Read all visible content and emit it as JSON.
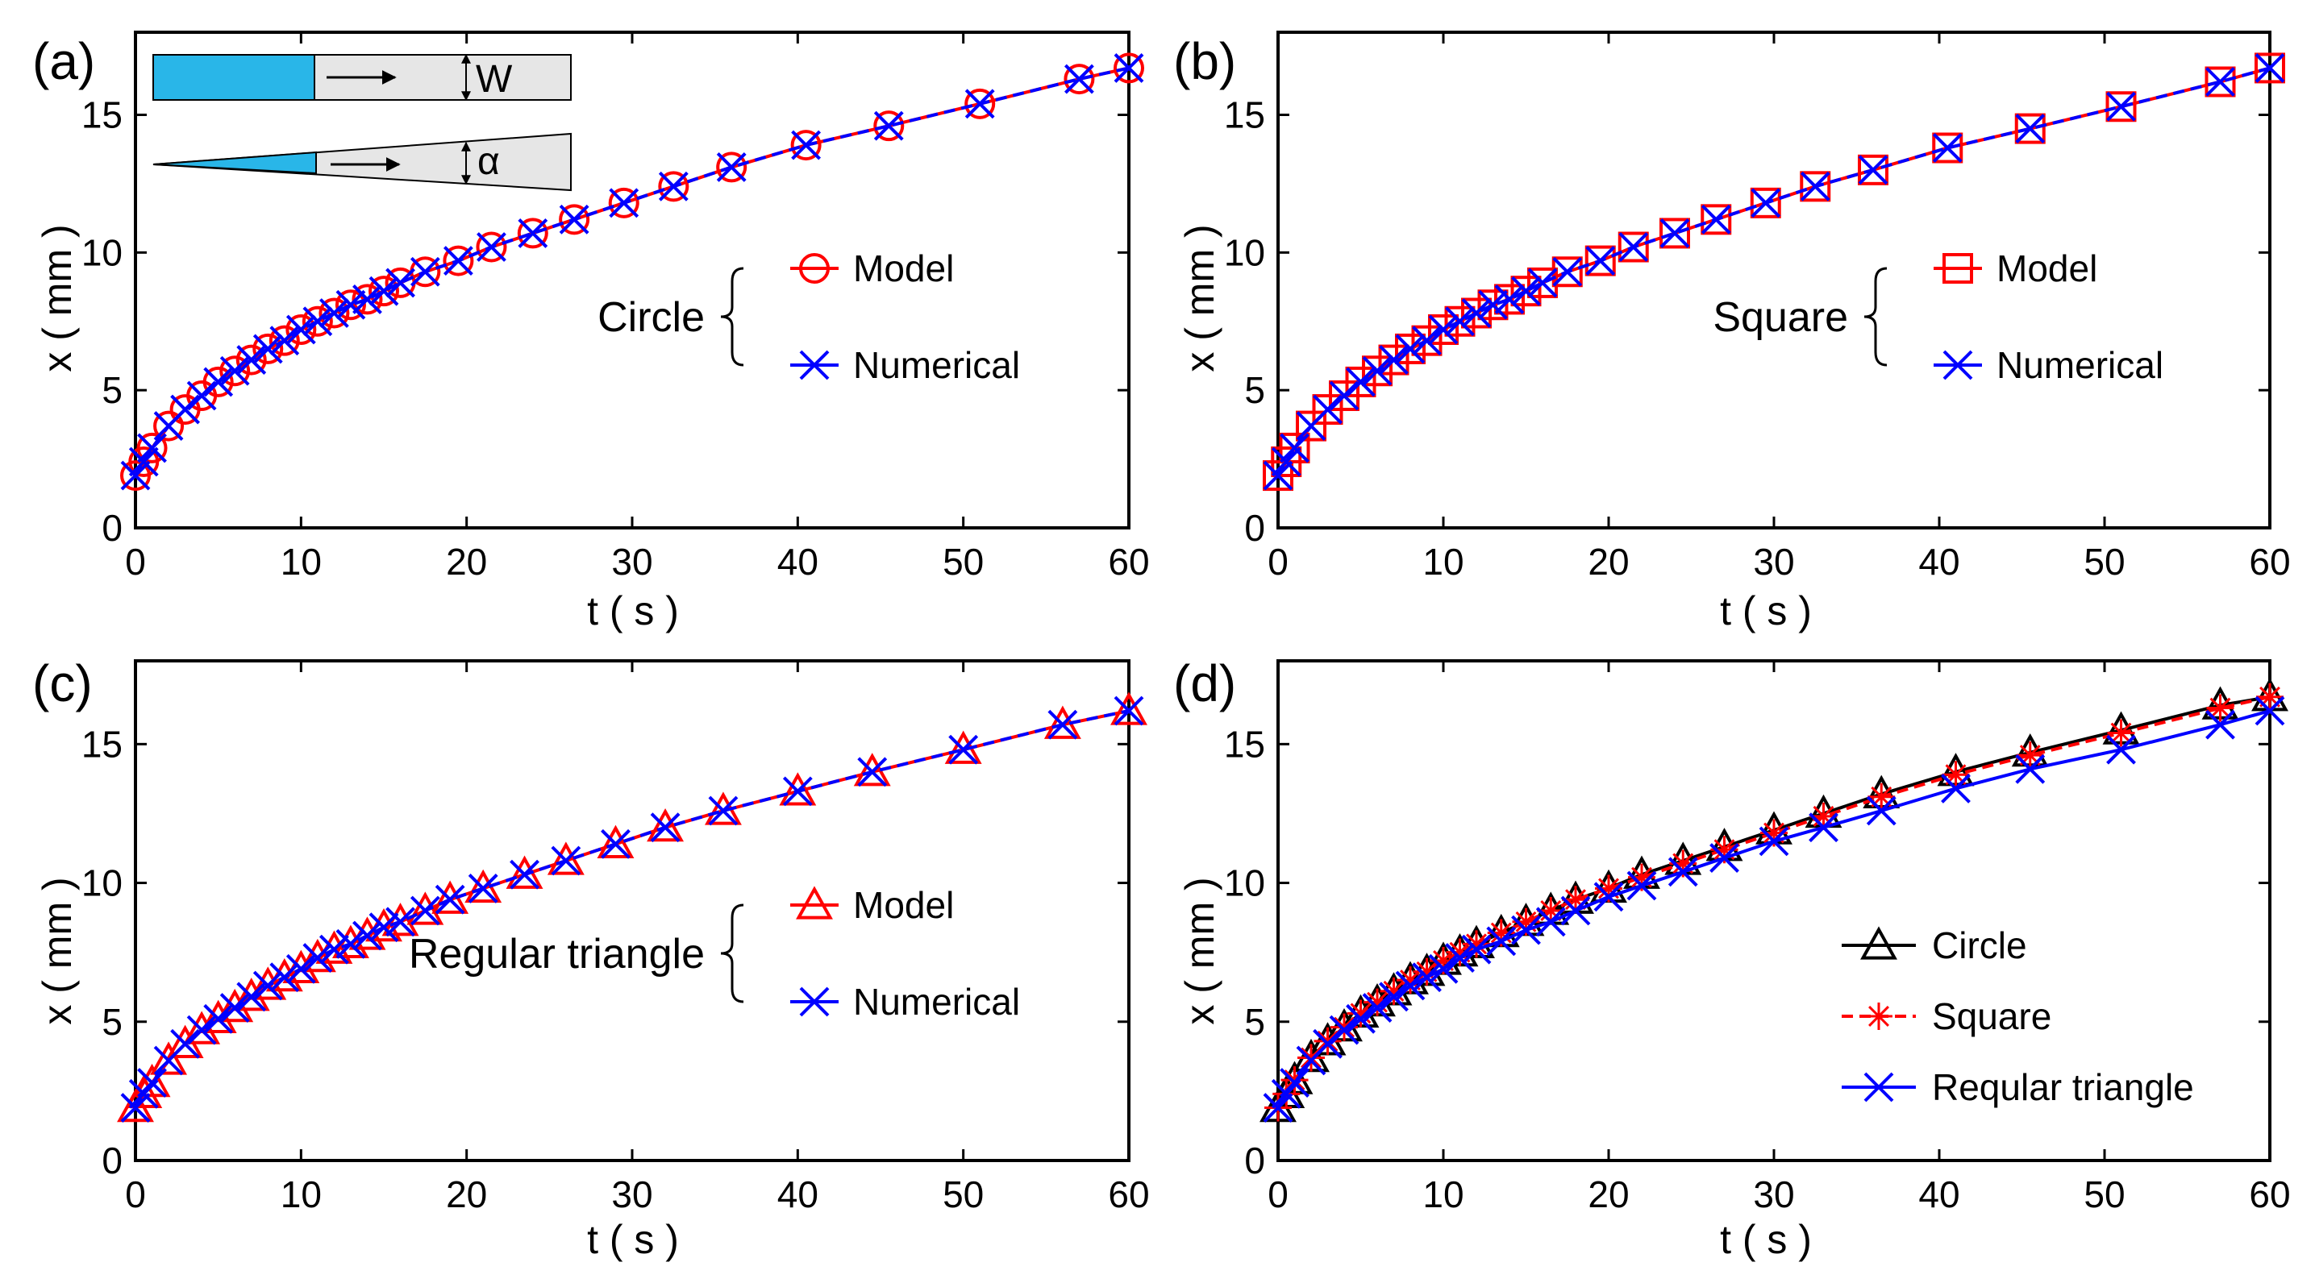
{
  "chart_data": [
    {
      "panel_label": "(a)",
      "type": "line",
      "xlabel": "t ( s )",
      "ylabel": "x ( mm )",
      "xlim": [
        0,
        60
      ],
      "ylim": [
        0,
        18
      ],
      "xticks": [
        0,
        10,
        20,
        30,
        40,
        50,
        60
      ],
      "yticks": [
        0,
        5,
        10,
        15
      ],
      "legend_group": "Circle",
      "legend_position": "center-right",
      "inset_labels": [
        "W",
        "α"
      ],
      "series": [
        {
          "name": "Model",
          "marker": "circle",
          "color": "#ff0000",
          "line": "solid",
          "x": [
            0,
            0.5,
            1,
            2,
            3,
            4,
            5,
            6,
            7,
            8,
            9,
            10,
            11,
            12,
            13,
            14,
            15,
            16,
            17.5,
            19.5,
            21.5,
            24,
            26.5,
            29.5,
            32.5,
            36,
            40.5,
            45.5,
            51,
            57,
            60
          ],
          "y": [
            1.9,
            2.4,
            2.9,
            3.7,
            4.3,
            4.8,
            5.3,
            5.7,
            6.1,
            6.5,
            6.8,
            7.2,
            7.5,
            7.8,
            8.1,
            8.3,
            8.6,
            8.9,
            9.3,
            9.7,
            10.2,
            10.7,
            11.2,
            11.8,
            12.4,
            13.1,
            13.9,
            14.6,
            15.4,
            16.3,
            16.7
          ]
        },
        {
          "name": "Numerical",
          "marker": "x",
          "color": "#0000ff",
          "line": "dashed",
          "x": [
            0,
            0.5,
            1,
            2,
            3,
            4,
            5,
            6,
            7,
            8,
            9,
            10,
            11,
            12,
            13,
            14,
            15,
            16,
            17.5,
            19.5,
            21.5,
            24,
            26.5,
            29.5,
            32.5,
            36,
            40.5,
            45.5,
            51,
            57,
            60
          ],
          "y": [
            1.9,
            2.4,
            2.9,
            3.7,
            4.3,
            4.8,
            5.3,
            5.7,
            6.1,
            6.5,
            6.8,
            7.2,
            7.5,
            7.8,
            8.1,
            8.3,
            8.6,
            8.9,
            9.3,
            9.7,
            10.2,
            10.7,
            11.2,
            11.8,
            12.4,
            13.1,
            13.9,
            14.6,
            15.4,
            16.3,
            16.7
          ]
        }
      ]
    },
    {
      "panel_label": "(b)",
      "type": "line",
      "xlabel": "t ( s )",
      "ylabel": "x ( mm )",
      "xlim": [
        0,
        60
      ],
      "ylim": [
        0,
        18
      ],
      "xticks": [
        0,
        10,
        20,
        30,
        40,
        50,
        60
      ],
      "yticks": [
        0,
        5,
        10,
        15
      ],
      "legend_group": "Square",
      "legend_position": "center-right",
      "series": [
        {
          "name": "Model",
          "marker": "square",
          "color": "#ff0000",
          "line": "solid",
          "x": [
            0,
            0.5,
            1,
            2,
            3,
            4,
            5,
            6,
            7,
            8,
            9,
            10,
            11,
            12,
            13,
            14,
            15,
            16,
            17.5,
            19.5,
            21.5,
            24,
            26.5,
            29.5,
            32.5,
            36,
            40.5,
            45.5,
            51,
            57,
            60
          ],
          "y": [
            1.9,
            2.4,
            2.9,
            3.7,
            4.3,
            4.8,
            5.3,
            5.7,
            6.1,
            6.5,
            6.8,
            7.2,
            7.5,
            7.8,
            8.1,
            8.3,
            8.6,
            8.9,
            9.3,
            9.7,
            10.2,
            10.7,
            11.2,
            11.8,
            12.4,
            13.0,
            13.8,
            14.5,
            15.3,
            16.2,
            16.7
          ]
        },
        {
          "name": "Numerical",
          "marker": "x",
          "color": "#0000ff",
          "line": "dashed",
          "x": [
            0,
            0.5,
            1,
            2,
            3,
            4,
            5,
            6,
            7,
            8,
            9,
            10,
            11,
            12,
            13,
            14,
            15,
            16,
            17.5,
            19.5,
            21.5,
            24,
            26.5,
            29.5,
            32.5,
            36,
            40.5,
            45.5,
            51,
            57,
            60
          ],
          "y": [
            1.9,
            2.4,
            2.9,
            3.7,
            4.3,
            4.8,
            5.3,
            5.7,
            6.1,
            6.5,
            6.8,
            7.2,
            7.5,
            7.8,
            8.1,
            8.3,
            8.6,
            8.9,
            9.3,
            9.7,
            10.2,
            10.7,
            11.2,
            11.8,
            12.4,
            13.0,
            13.8,
            14.5,
            15.3,
            16.2,
            16.7
          ]
        }
      ]
    },
    {
      "panel_label": "(c)",
      "type": "line",
      "xlabel": "t ( s )",
      "ylabel": "x ( mm )",
      "xlim": [
        0,
        60
      ],
      "ylim": [
        0,
        18
      ],
      "xticks": [
        0,
        10,
        20,
        30,
        40,
        50,
        60
      ],
      "yticks": [
        0,
        5,
        10,
        15
      ],
      "legend_group": "Regular triangle",
      "legend_position": "center-right",
      "series": [
        {
          "name": "Model",
          "marker": "triangle",
          "color": "#ff0000",
          "line": "solid",
          "x": [
            0,
            0.5,
            1,
            2,
            3,
            4,
            5,
            6,
            7,
            8,
            9,
            10,
            11,
            12,
            13,
            14,
            15,
            16,
            17.5,
            19,
            21,
            23.5,
            26,
            29,
            32,
            35.5,
            40,
            44.5,
            50,
            56,
            60
          ],
          "y": [
            1.9,
            2.4,
            2.8,
            3.6,
            4.2,
            4.7,
            5.1,
            5.5,
            5.9,
            6.3,
            6.6,
            6.9,
            7.3,
            7.6,
            7.8,
            8.1,
            8.4,
            8.6,
            9.0,
            9.4,
            9.8,
            10.3,
            10.8,
            11.4,
            12.0,
            12.6,
            13.3,
            14.0,
            14.8,
            15.7,
            16.2
          ]
        },
        {
          "name": "Numerical",
          "marker": "x",
          "color": "#0000ff",
          "line": "dashed",
          "x": [
            0,
            0.5,
            1,
            2,
            3,
            4,
            5,
            6,
            7,
            8,
            9,
            10,
            11,
            12,
            13,
            14,
            15,
            16,
            17.5,
            19,
            21,
            23.5,
            26,
            29,
            32,
            35.5,
            40,
            44.5,
            50,
            56,
            60
          ],
          "y": [
            1.9,
            2.4,
            2.8,
            3.6,
            4.2,
            4.7,
            5.1,
            5.5,
            5.9,
            6.3,
            6.6,
            6.9,
            7.3,
            7.6,
            7.8,
            8.1,
            8.4,
            8.6,
            9.0,
            9.4,
            9.8,
            10.3,
            10.8,
            11.4,
            12.0,
            12.6,
            13.3,
            14.0,
            14.8,
            15.7,
            16.2
          ]
        }
      ]
    },
    {
      "panel_label": "(d)",
      "type": "line",
      "xlabel": "t ( s )",
      "ylabel": "x ( mm )",
      "xlim": [
        0,
        60
      ],
      "ylim": [
        0,
        18
      ],
      "xticks": [
        0,
        10,
        20,
        30,
        40,
        50,
        60
      ],
      "yticks": [
        0,
        5,
        10,
        15
      ],
      "legend_position": "lower-right",
      "series": [
        {
          "name": "Circle",
          "marker": "triangle",
          "color": "#000000",
          "line": "solid",
          "x": [
            0,
            0.5,
            1,
            2,
            3,
            4,
            5,
            6,
            7,
            8,
            9,
            10,
            11,
            12,
            13.5,
            15,
            16.5,
            18,
            20,
            22,
            24.5,
            27,
            30,
            33,
            36.5,
            41,
            45.5,
            51,
            57,
            60
          ],
          "y": [
            1.9,
            2.4,
            2.9,
            3.7,
            4.3,
            4.8,
            5.3,
            5.7,
            6.1,
            6.5,
            6.8,
            7.2,
            7.5,
            7.8,
            8.2,
            8.6,
            9.0,
            9.4,
            9.8,
            10.3,
            10.8,
            11.3,
            11.9,
            12.5,
            13.2,
            14.0,
            14.7,
            15.5,
            16.4,
            16.7
          ]
        },
        {
          "name": "Square",
          "marker": "asterisk",
          "color": "#ff0000",
          "line": "dashed",
          "x": [
            0,
            0.5,
            1,
            2,
            3,
            4,
            5,
            6,
            7,
            8,
            9,
            10,
            11,
            12,
            13.5,
            15,
            16.5,
            18,
            20,
            22,
            24.5,
            27,
            30,
            33,
            36.5,
            41,
            45.5,
            51,
            57,
            60
          ],
          "y": [
            1.9,
            2.4,
            2.9,
            3.7,
            4.3,
            4.8,
            5.3,
            5.7,
            6.1,
            6.5,
            6.8,
            7.2,
            7.5,
            7.8,
            8.2,
            8.6,
            9.0,
            9.4,
            9.8,
            10.2,
            10.7,
            11.2,
            11.8,
            12.4,
            13.1,
            13.9,
            14.6,
            15.4,
            16.3,
            16.7
          ]
        },
        {
          "name": "Reqular triangle",
          "marker": "x",
          "color": "#0000ff",
          "line": "solid",
          "x": [
            0,
            0.5,
            1,
            2,
            3,
            4,
            5,
            6,
            7,
            8,
            9,
            10,
            11,
            12,
            13.5,
            15,
            16.5,
            18,
            20,
            22,
            24.5,
            27,
            30,
            33,
            36.5,
            41,
            45.5,
            51,
            57,
            60
          ],
          "y": [
            1.9,
            2.4,
            2.8,
            3.6,
            4.2,
            4.7,
            5.1,
            5.5,
            5.9,
            6.3,
            6.6,
            6.9,
            7.3,
            7.6,
            7.9,
            8.3,
            8.6,
            9.0,
            9.5,
            9.9,
            10.4,
            10.9,
            11.5,
            12.0,
            12.6,
            13.4,
            14.1,
            14.8,
            15.7,
            16.2
          ]
        }
      ]
    }
  ]
}
